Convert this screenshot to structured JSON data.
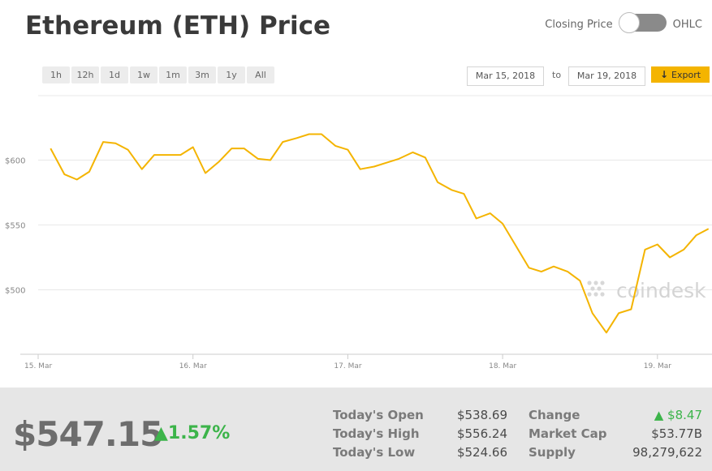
{
  "header": {
    "title": "Ethereum (ETH) Price",
    "toggle_left": "Closing Price",
    "toggle_right": "OHLC"
  },
  "controls": {
    "ranges": [
      "1h",
      "12h",
      "1d",
      "1w",
      "1m",
      "3m",
      "1y",
      "All"
    ],
    "date_from": "Mar 15, 2018",
    "date_to_word": "to",
    "date_to": "Mar 19, 2018",
    "export_label": "Export"
  },
  "watermark": "coindesk",
  "colors": {
    "line": "#f4b400",
    "grid": "#e8e8e8",
    "up": "#3cb44a"
  },
  "chart_data": {
    "type": "line",
    "ylabel": "",
    "ylim": [
      450,
      630
    ],
    "yticks": [
      500,
      550,
      600
    ],
    "ytick_labels": [
      "$500",
      "$550",
      "$600"
    ],
    "xlim": [
      0,
      4.3
    ],
    "xticks": [
      0,
      1,
      2,
      3,
      4
    ],
    "xtick_labels": [
      "15. Mar",
      "16. Mar",
      "17. Mar",
      "18. Mar",
      "19. Mar"
    ],
    "grid": true,
    "series": [
      {
        "values": [
          [
            0.08,
            609
          ],
          [
            0.17,
            589
          ],
          [
            0.25,
            585
          ],
          [
            0.33,
            591
          ],
          [
            0.42,
            614
          ],
          [
            0.5,
            613
          ],
          [
            0.58,
            608
          ],
          [
            0.67,
            593
          ],
          [
            0.75,
            604
          ],
          [
            0.83,
            604
          ],
          [
            0.92,
            604
          ],
          [
            1.0,
            610
          ],
          [
            1.08,
            590
          ],
          [
            1.17,
            599
          ],
          [
            1.25,
            609
          ],
          [
            1.33,
            609
          ],
          [
            1.42,
            601
          ],
          [
            1.5,
            600
          ],
          [
            1.58,
            614
          ],
          [
            1.67,
            617
          ],
          [
            1.75,
            620
          ],
          [
            1.83,
            620
          ],
          [
            1.92,
            611
          ],
          [
            2.0,
            608
          ],
          [
            2.08,
            593
          ],
          [
            2.17,
            595
          ],
          [
            2.25,
            598
          ],
          [
            2.33,
            601
          ],
          [
            2.42,
            606
          ],
          [
            2.5,
            602
          ],
          [
            2.58,
            583
          ],
          [
            2.67,
            577
          ],
          [
            2.75,
            574
          ],
          [
            2.83,
            555
          ],
          [
            2.92,
            559
          ],
          [
            3.0,
            551
          ],
          [
            3.08,
            535
          ],
          [
            3.17,
            517
          ],
          [
            3.25,
            514
          ],
          [
            3.33,
            518
          ],
          [
            3.42,
            514
          ],
          [
            3.5,
            507
          ],
          [
            3.58,
            482
          ],
          [
            3.67,
            467
          ],
          [
            3.75,
            482
          ],
          [
            3.83,
            485
          ],
          [
            3.92,
            531
          ],
          [
            4.0,
            535
          ],
          [
            4.08,
            525
          ],
          [
            4.17,
            531
          ],
          [
            4.25,
            542
          ],
          [
            4.33,
            547
          ]
        ]
      }
    ]
  },
  "stats": {
    "price": "$547.15",
    "change_pct": "1.57%",
    "today_open_label": "Today's Open",
    "today_open": "$538.69",
    "today_high_label": "Today's High",
    "today_high": "$556.24",
    "today_low_label": "Today's Low",
    "today_low": "$524.66",
    "change_label": "Change",
    "change": "$8.47",
    "market_cap_label": "Market Cap",
    "market_cap": "$53.77B",
    "supply_label": "Supply",
    "supply": "98,279,622"
  }
}
